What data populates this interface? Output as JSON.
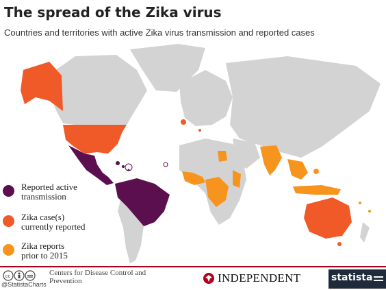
{
  "header": {
    "title": "The spread of the Zika virus",
    "subtitle": "Countries and territories with active Zika virus transmission and reported cases"
  },
  "legend": {
    "items": [
      {
        "label_line1": "Reported active",
        "label_line2": "transmission",
        "color": "#5b0f4e"
      },
      {
        "label_line1": "Zika case(s)",
        "label_line2": "currently reported",
        "color": "#f05a28"
      },
      {
        "label_line1": "Zika reports",
        "label_line2": "prior to 2015",
        "color": "#f7941d"
      }
    ]
  },
  "colors": {
    "land": "#d3d3d3",
    "active": "#5b0f4e",
    "current": "#f05a28",
    "prior": "#f7941d",
    "ocean": "#ffffff"
  },
  "footer": {
    "handle": "@StatistaCharts",
    "source_line1": "Centers for Disease Control and",
    "source_line2": "Prevention",
    "publisher": "INDEPENDENT",
    "brand": "statista"
  },
  "icons": {
    "license": "creative-commons-icon",
    "publisher_logo": "eagle-icon",
    "brand_logo": "statista-mark-icon"
  }
}
